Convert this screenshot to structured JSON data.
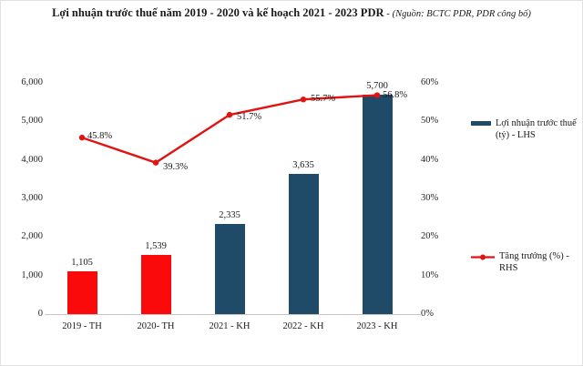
{
  "title": {
    "main": "Lợi nhuận trước thuế năm 2019 - 2020 và kế hoạch 2021 - 2023 PDR",
    "separator": " - ",
    "source": "(Nguồn: BCTC PDR, PDR công bố)"
  },
  "colors": {
    "bar_red": "#fa0a0a",
    "bar_blue": "#1f4a68",
    "line_red": "#e01412",
    "axis_line": "#c6c6c6"
  },
  "chart_data": {
    "type": "combo bar+line",
    "categories": [
      "2019 - TH",
      "2020- TH",
      "2021 - KH",
      "2022 - KH",
      "2023 - KH"
    ],
    "series": [
      {
        "name": "Lợi nhuận trước thuế (tỷ) - LHS",
        "type": "bar",
        "axis": "left",
        "values": [
          1105,
          1539,
          2335,
          3635,
          5700
        ],
        "labels": [
          "1,105",
          "1,539",
          "2,335",
          "3,635",
          "5,700"
        ],
        "bar_colors": [
          "#fa0a0a",
          "#fa0a0a",
          "#1f4a68",
          "#1f4a68",
          "#1f4a68"
        ]
      },
      {
        "name": "Tăng trưởng (%) - RHS",
        "type": "line",
        "axis": "right",
        "values": [
          45.8,
          39.3,
          51.7,
          55.7,
          56.8
        ],
        "labels": [
          "45.8%",
          "39.3%",
          "51.7%",
          "55.7%",
          "56.8%"
        ],
        "color": "#e01412"
      }
    ],
    "left_axis": {
      "min": 0,
      "max": 6000,
      "ticks": [
        "0",
        "1,000",
        "2,000",
        "3,000",
        "4,000",
        "5,000",
        "6,000"
      ]
    },
    "right_axis": {
      "min": 0,
      "max": 60,
      "ticks": [
        "0%",
        "10%",
        "20%",
        "30%",
        "40%",
        "50%",
        "60%"
      ]
    },
    "grid": false,
    "legend_position": "right"
  }
}
